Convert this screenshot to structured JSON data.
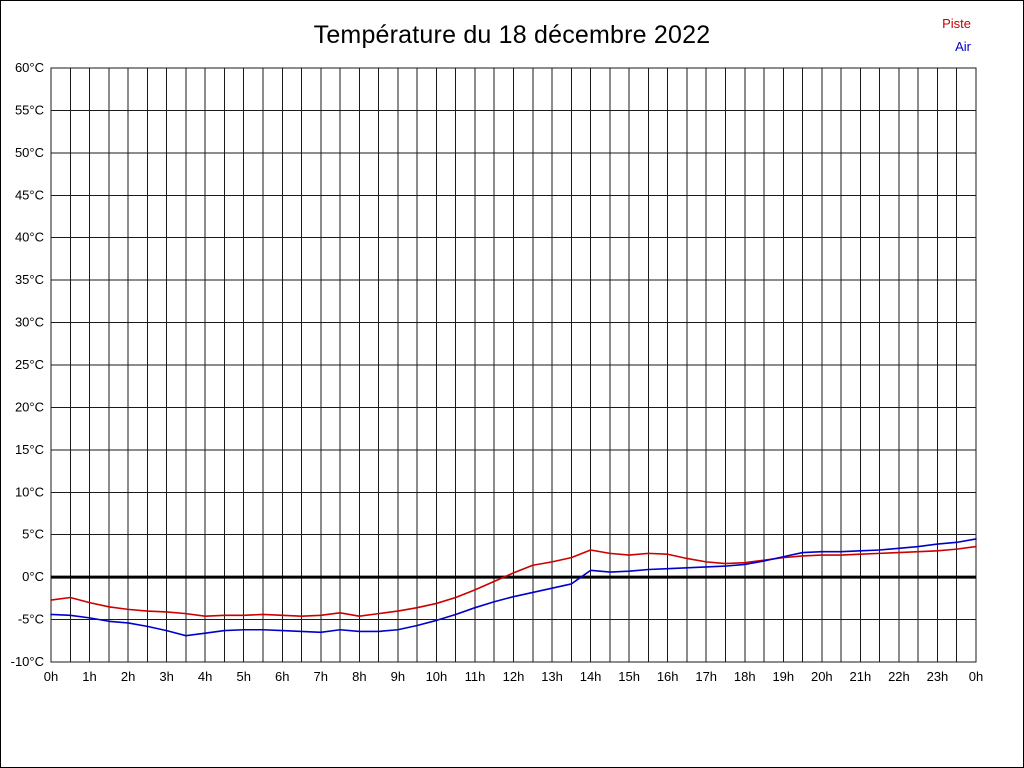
{
  "page": {
    "title": "Température du 18 décembre 2022"
  },
  "chart_data": {
    "type": "line",
    "title": "Température du 18 décembre 2022",
    "xlabel": "",
    "ylabel": "",
    "x_unit": "hours",
    "ylim": [
      -10,
      60
    ],
    "xlim": [
      0,
      24
    ],
    "x_grid_step": 0.5,
    "grid": true,
    "zero_line": true,
    "legend_position": "top-right",
    "yticks": [
      60,
      55,
      50,
      45,
      40,
      35,
      30,
      25,
      20,
      15,
      10,
      5,
      0,
      -5,
      -10
    ],
    "ytick_labels": [
      "60°C",
      "55°C",
      "50°C",
      "45°C",
      "40°C",
      "35°C",
      "30°C",
      "25°C",
      "20°C",
      "15°C",
      "10°C",
      "5°C",
      "0°C",
      "-5°C",
      "-10°C"
    ],
    "xticks": [
      0,
      1,
      2,
      3,
      4,
      5,
      6,
      7,
      8,
      9,
      10,
      11,
      12,
      13,
      14,
      15,
      16,
      17,
      18,
      19,
      20,
      21,
      22,
      23,
      24
    ],
    "xtick_labels": [
      "0h",
      "1h",
      "2h",
      "3h",
      "4h",
      "5h",
      "6h",
      "7h",
      "8h",
      "9h",
      "10h",
      "11h",
      "12h",
      "13h",
      "14h",
      "15h",
      "16h",
      "17h",
      "18h",
      "19h",
      "20h",
      "21h",
      "22h",
      "23h",
      "0h"
    ],
    "x": [
      0,
      0.5,
      1,
      1.5,
      2,
      2.5,
      3,
      3.5,
      4,
      4.5,
      5,
      5.5,
      6,
      6.5,
      7,
      7.5,
      8,
      8.5,
      9,
      9.5,
      10,
      10.5,
      11,
      11.5,
      12,
      12.5,
      13,
      13.5,
      14,
      14.5,
      15,
      15.5,
      16,
      16.5,
      17,
      17.5,
      18,
      18.5,
      19,
      19.5,
      20,
      20.5,
      21,
      21.5,
      22,
      22.5,
      23,
      23.5,
      24
    ],
    "series": [
      {
        "name": "Piste",
        "color": "#cc0000",
        "values": [
          -2.7,
          -2.4,
          -3.0,
          -3.5,
          -3.8,
          -4.0,
          -4.1,
          -4.3,
          -4.6,
          -4.5,
          -4.5,
          -4.4,
          -4.5,
          -4.6,
          -4.5,
          -4.2,
          -4.6,
          -4.3,
          -4.0,
          -3.6,
          -3.1,
          -2.4,
          -1.5,
          -0.5,
          0.5,
          1.4,
          1.8,
          2.3,
          3.2,
          2.8,
          2.6,
          2.8,
          2.7,
          2.2,
          1.8,
          1.6,
          1.7,
          2.0,
          2.3,
          2.5,
          2.6,
          2.6,
          2.7,
          2.8,
          2.9,
          3.0,
          3.1,
          3.3,
          3.6
        ]
      },
      {
        "name": "Air",
        "color": "#0000cc",
        "values": [
          -4.4,
          -4.5,
          -4.8,
          -5.2,
          -5.4,
          -5.8,
          -6.3,
          -6.9,
          -6.6,
          -6.3,
          -6.2,
          -6.2,
          -6.3,
          -6.4,
          -6.5,
          -6.2,
          -6.4,
          -6.4,
          -6.2,
          -5.7,
          -5.1,
          -4.4,
          -3.6,
          -2.9,
          -2.3,
          -1.8,
          -1.3,
          -0.8,
          0.8,
          0.6,
          0.7,
          0.9,
          1.0,
          1.1,
          1.2,
          1.3,
          1.5,
          1.9,
          2.4,
          2.9,
          3.0,
          3.0,
          3.1,
          3.2,
          3.4,
          3.6,
          3.9,
          4.1,
          4.5
        ]
      }
    ],
    "grid_color": "#1a1a1a",
    "zero_line_color": "#000000"
  }
}
